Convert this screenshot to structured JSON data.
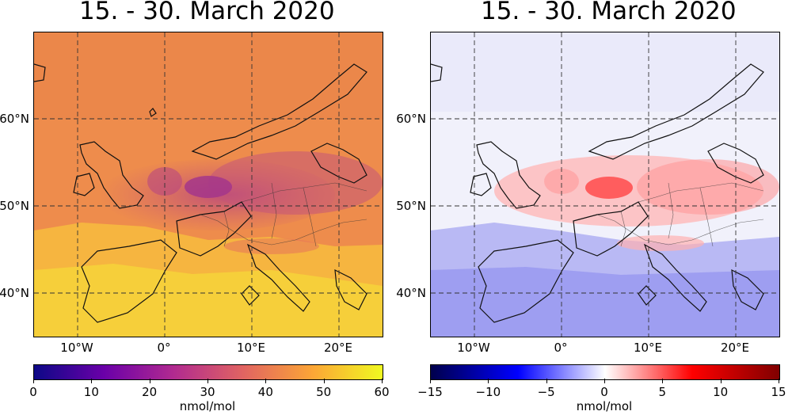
{
  "panels": [
    {
      "title": "15. - 30. March 2020",
      "lat_labels": [
        "60°N",
        "50°N",
        "40°N"
      ],
      "lon_labels": [
        "10°W",
        "0°",
        "10°E",
        "20°E"
      ],
      "colorbar": {
        "colormap": "plasma",
        "colors": [
          "#0d0887",
          "#6a00a8",
          "#b12a90",
          "#e16462",
          "#fca636",
          "#f0f921"
        ],
        "ticks": [
          "0",
          "10",
          "20",
          "30",
          "40",
          "50",
          "60"
        ],
        "unit": "nmol/mol"
      }
    },
    {
      "title": "15. - 30. March 2020",
      "lat_labels": [
        "60°N",
        "50°N",
        "40°N"
      ],
      "lon_labels": [
        "10°W",
        "0°",
        "10°E",
        "20°E"
      ],
      "colorbar": {
        "colormap": "seismic",
        "colors": [
          "#00004c",
          "#0000ff",
          "#ffffff",
          "#ff0000",
          "#800000"
        ],
        "ticks": [
          "−15",
          "−10",
          "−5",
          "0",
          "5",
          "10",
          "15"
        ],
        "unit": "nmol/mol"
      }
    }
  ]
}
